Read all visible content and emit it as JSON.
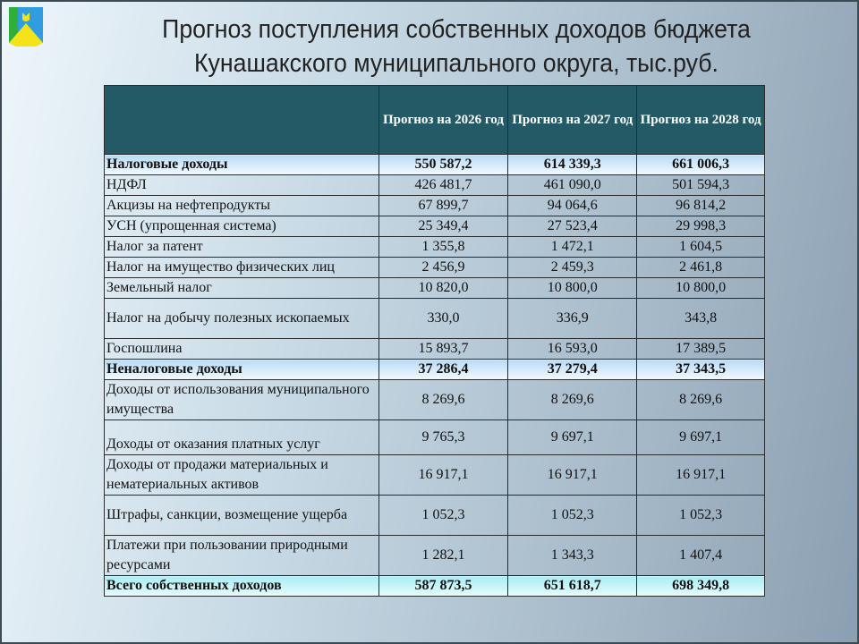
{
  "title": {
    "line1": "Прогноз поступления собственных доходов бюджета",
    "line2": "Кунашакского муниципального округа, тыс.руб."
  },
  "table": {
    "headers": [
      "",
      "Прогноз на 2026 год",
      "Прогноз на 2027 год",
      "Прогноз на 2028 год"
    ],
    "rows": [
      {
        "label": "Налоговые доходы",
        "v": [
          "550 587,2",
          "614 339,3",
          "661 006,3"
        ]
      },
      {
        "label": "НДФЛ",
        "v": [
          "426 481,7",
          "461 090,0",
          "501 594,3"
        ]
      },
      {
        "label": "Акцизы на нефтепродукты",
        "v": [
          "67 899,7",
          "94 064,6",
          "96 814,2"
        ]
      },
      {
        "label": "УСН (упрощенная система)",
        "v": [
          "25 349,4",
          "27 523,4",
          "29 998,3"
        ]
      },
      {
        "label": "Налог за патент",
        "v": [
          "1 355,8",
          "1 472,1",
          "1 604,5"
        ]
      },
      {
        "label": "Налог на имущество физических лиц",
        "v": [
          "2 456,9",
          "2 459,3",
          "2 461,8"
        ]
      },
      {
        "label": "Земельный налог",
        "v": [
          "10 820,0",
          "10 800,0",
          "10 800,0"
        ]
      },
      {
        "label": "Налог на добычу полезных ископаемых",
        "v": [
          "330,0",
          "336,9",
          "343,8"
        ]
      },
      {
        "label": "Госпошлина",
        "v": [
          "15 893,7",
          "16 593,0",
          "17 389,5"
        ]
      },
      {
        "label": "Неналоговые доходы",
        "v": [
          "37 286,4",
          "37 279,4",
          "37 343,5"
        ]
      },
      {
        "label": "Доходы от использования муниципального имущества",
        "v": [
          "8 269,6",
          "8 269,6",
          "8 269,6"
        ]
      },
      {
        "label": "Доходы от оказания платных услуг",
        "v": [
          "9 765,3",
          "9 697,1",
          "9 697,1"
        ]
      },
      {
        "label": "Доходы от продажи материальных и нематериальных активов",
        "v": [
          "16 917,1",
          "16 917,1",
          "16 917,1"
        ]
      },
      {
        "label": "Штрафы, санкции, возмещение ущерба",
        "v": [
          "1 052,3",
          "1 052,3",
          "1 052,3"
        ]
      },
      {
        "label": "Платежи при пользовании природными ресурсами",
        "v": [
          "1 282,1",
          "1 343,3",
          "1 407,4"
        ]
      },
      {
        "label": "Всего собственных доходов",
        "v": [
          "587 873,5",
          "651 618,7",
          "698 349,8"
        ]
      }
    ]
  }
}
